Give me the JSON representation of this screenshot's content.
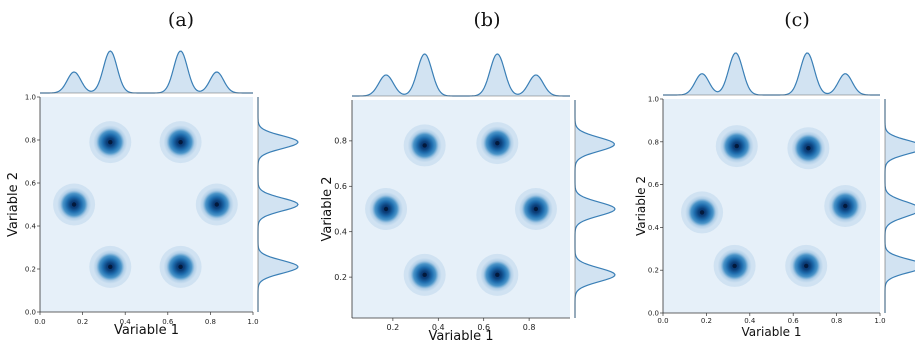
{
  "colors": {
    "background": "#e6f0f9",
    "marginal_fill": "#c7dcef",
    "marginal_line": "#3a7fb6",
    "axis": "#333333",
    "density_ring": "#a6c8e4",
    "density_mid": "#3c8cc4",
    "density_core": "#08306b"
  },
  "chart_data": [
    {
      "panel": "(a)",
      "type": "kde-jointplot",
      "xlabel": "Variable 1",
      "ylabel": "Variable 2",
      "xlim": [
        0.0,
        1.0
      ],
      "ylim": [
        0.0,
        1.0
      ],
      "xticks": [
        "0.0",
        "0.2",
        "0.4",
        "0.6",
        "0.8",
        "1.0"
      ],
      "yticks": [
        "0.0",
        "0.2",
        "0.4",
        "0.6",
        "0.8",
        "1.0"
      ],
      "modes": [
        {
          "x": 0.33,
          "y": 0.79
        },
        {
          "x": 0.66,
          "y": 0.79
        },
        {
          "x": 0.16,
          "y": 0.5
        },
        {
          "x": 0.83,
          "y": 0.5
        },
        {
          "x": 0.33,
          "y": 0.21
        },
        {
          "x": 0.66,
          "y": 0.21
        }
      ],
      "grid": false
    },
    {
      "panel": "(b)",
      "type": "kde-jointplot",
      "xlabel": "Variable 1",
      "ylabel": "Variable 2",
      "xlim": [
        0.02,
        0.98
      ],
      "ylim": [
        0.02,
        0.98
      ],
      "xticks": [
        "0.2",
        "0.4",
        "0.6",
        "0.8"
      ],
      "yticks": [
        "0.2",
        "0.4",
        "0.6",
        "0.8"
      ],
      "modes": [
        {
          "x": 0.34,
          "y": 0.78
        },
        {
          "x": 0.66,
          "y": 0.79
        },
        {
          "x": 0.17,
          "y": 0.5
        },
        {
          "x": 0.83,
          "y": 0.5
        },
        {
          "x": 0.34,
          "y": 0.21
        },
        {
          "x": 0.66,
          "y": 0.21
        }
      ],
      "grid": false
    },
    {
      "panel": "(c)",
      "type": "kde-jointplot",
      "xlabel": "Variable 1",
      "ylabel": "Variable 2",
      "xlim": [
        0.0,
        1.0
      ],
      "ylim": [
        0.0,
        1.0
      ],
      "xticks": [
        "0.0",
        "0.2",
        "0.4",
        "0.6",
        "0.8",
        "1.0"
      ],
      "yticks": [
        "0.0",
        "0.2",
        "0.4",
        "0.6",
        "0.8",
        "1.0"
      ],
      "modes": [
        {
          "x": 0.34,
          "y": 0.78
        },
        {
          "x": 0.67,
          "y": 0.77
        },
        {
          "x": 0.18,
          "y": 0.47
        },
        {
          "x": 0.84,
          "y": 0.5
        },
        {
          "x": 0.33,
          "y": 0.22
        },
        {
          "x": 0.66,
          "y": 0.22
        }
      ],
      "grid": false
    }
  ]
}
